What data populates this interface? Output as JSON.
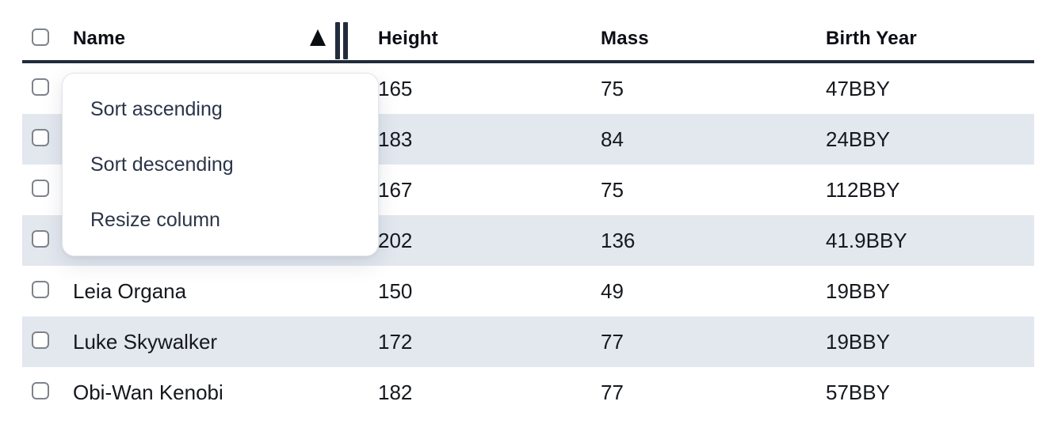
{
  "table": {
    "select_all_state": "unchecked",
    "columns": [
      {
        "id": "name",
        "label": "Name",
        "sorted": "ascending"
      },
      {
        "id": "height",
        "label": "Height"
      },
      {
        "id": "mass",
        "label": "Mass"
      },
      {
        "id": "birth_year",
        "label": "Birth Year"
      }
    ],
    "rows": [
      {
        "name": "",
        "height": "165",
        "mass": "75",
        "birth_year": "47BBY"
      },
      {
        "name": "",
        "height": "183",
        "mass": "84",
        "birth_year": "24BBY"
      },
      {
        "name": "",
        "height": "167",
        "mass": "75",
        "birth_year": "112BBY"
      },
      {
        "name": "",
        "height": "202",
        "mass": "136",
        "birth_year": "41.9BBY"
      },
      {
        "name": "Leia Organa",
        "height": "150",
        "mass": "49",
        "birth_year": "19BBY"
      },
      {
        "name": "Luke Skywalker",
        "height": "172",
        "mass": "77",
        "birth_year": "19BBY"
      },
      {
        "name": "Obi-Wan Kenobi",
        "height": "182",
        "mass": "77",
        "birth_year": "57BBY"
      }
    ],
    "row_checkbox_state": "unchecked"
  },
  "context_menu": {
    "items": [
      {
        "label": "Sort ascending"
      },
      {
        "label": "Sort descending"
      },
      {
        "label": "Resize column"
      }
    ]
  },
  "icons": {
    "sort_indicator": "triangle-up",
    "resize_handle": "double-vertical-bars"
  },
  "colors": {
    "row_stripe": "#e3e8ef",
    "header_rule": "#202b3b",
    "menu_text": "#2b3549",
    "cell_text": "#15181d",
    "checkbox_border": "#7e838b"
  }
}
